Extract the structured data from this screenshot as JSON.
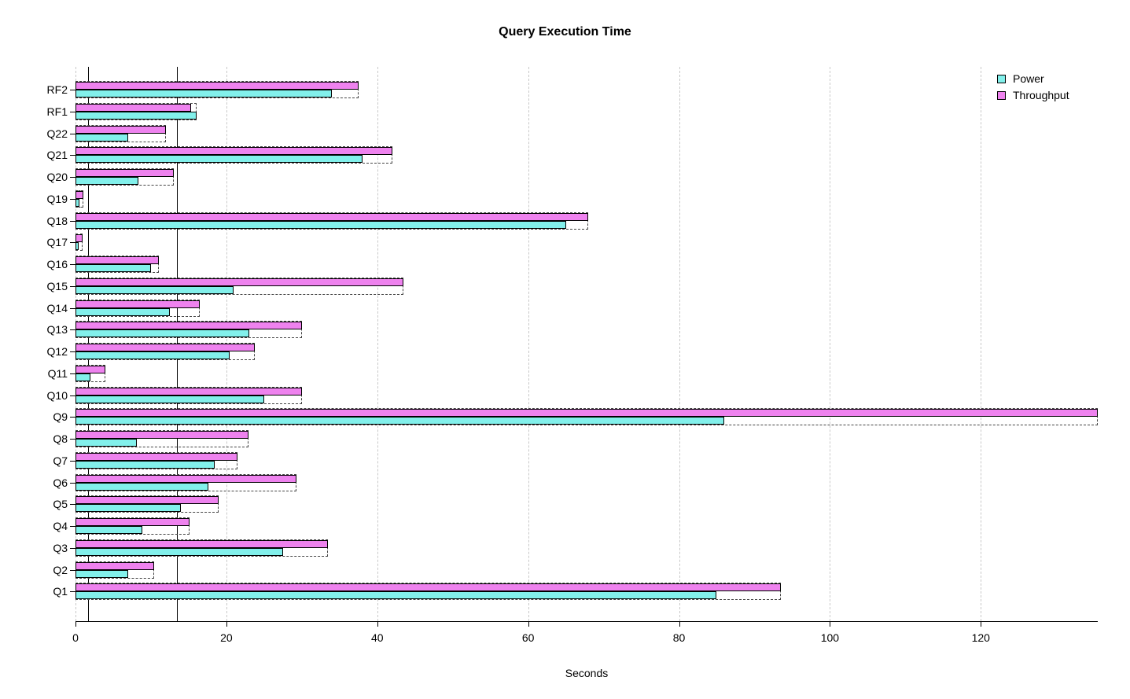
{
  "chart_data": {
    "type": "bar",
    "orientation": "horizontal",
    "title": "Query Execution Time",
    "xlabel": "Seconds",
    "ylabel": "",
    "categories_order": "top-to-bottom",
    "categories": [
      "RF2",
      "RF1",
      "Q22",
      "Q21",
      "Q20",
      "Q19",
      "Q18",
      "Q17",
      "Q16",
      "Q15",
      "Q14",
      "Q13",
      "Q12",
      "Q11",
      "Q10",
      "Q9",
      "Q8",
      "Q7",
      "Q6",
      "Q5",
      "Q4",
      "Q3",
      "Q2",
      "Q1"
    ],
    "series": [
      {
        "name": "Power",
        "color": "#82F0EB",
        "values": [
          34,
          16,
          7,
          38,
          8.3,
          0.5,
          65,
          0.4,
          10,
          21,
          12.5,
          23,
          20.4,
          2,
          25,
          86,
          8.1,
          18.4,
          17.6,
          14,
          8.9,
          27.5,
          7,
          85
        ]
      },
      {
        "name": "Throughput",
        "color": "#EE82EE",
        "values": [
          37.5,
          15.3,
          12,
          42,
          13,
          1,
          68,
          0.9,
          11,
          43.5,
          16.5,
          30,
          23.8,
          4,
          30,
          135.5,
          22.9,
          21.5,
          29.3,
          19,
          15.1,
          33.5,
          10.4,
          93.5
        ]
      }
    ],
    "bar_order_in_group": [
      "Throughput",
      "Power"
    ],
    "xticks": [
      0,
      20,
      40,
      60,
      80,
      100,
      120
    ],
    "xlim": [
      0,
      135.5
    ],
    "reference_lines": [
      1.7,
      13.4
    ],
    "grid": "dashed-vertical",
    "legend_position": "top-right"
  }
}
